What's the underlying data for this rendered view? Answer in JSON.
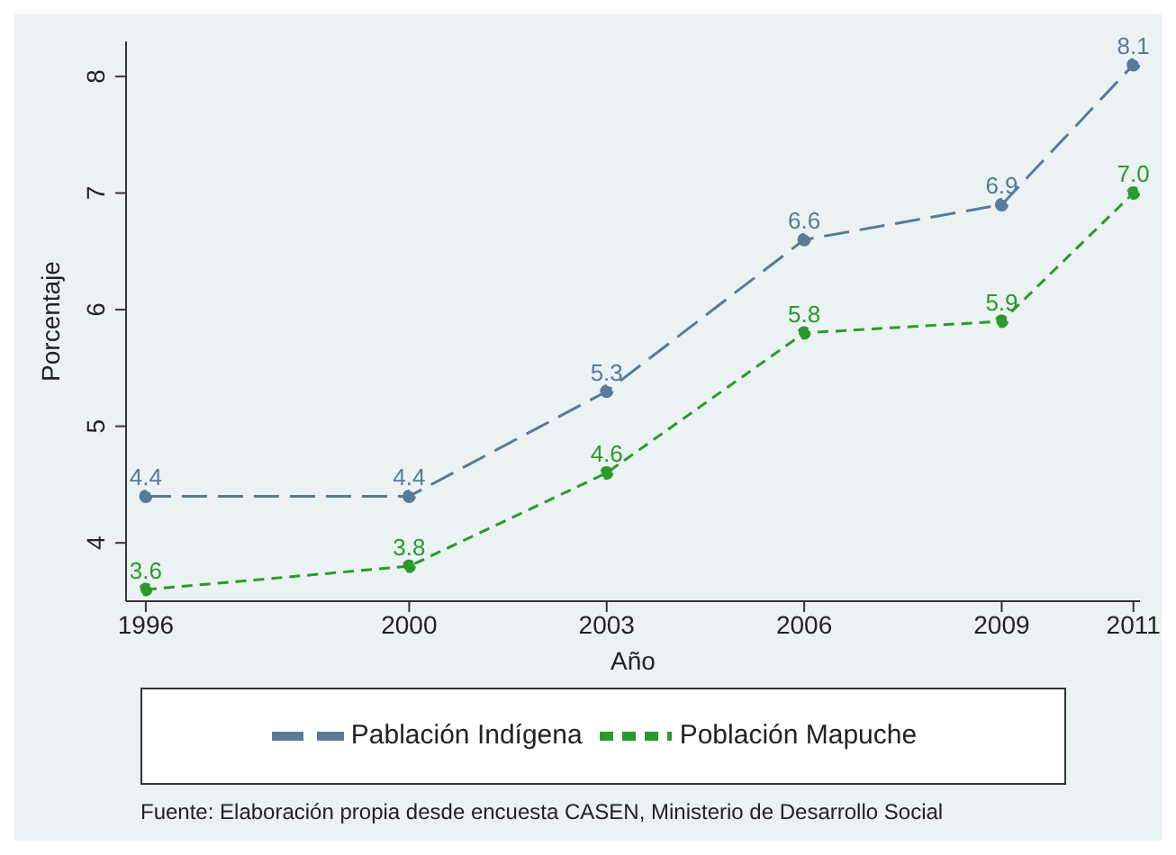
{
  "chart_data": {
    "type": "line",
    "xlabel": "Año",
    "ylabel": "Porcentaje",
    "x": [
      1996,
      2000,
      2003,
      2006,
      2009,
      2011
    ],
    "series": [
      {
        "name": "Pablación Indígena",
        "color": "#5b7a98",
        "values": [
          4.4,
          4.4,
          5.3,
          6.6,
          6.9,
          8.1
        ],
        "value_labels": [
          "4.4",
          "4.4",
          "5.3",
          "6.6",
          "6.9",
          "8.1"
        ],
        "line_style": "dashed"
      },
      {
        "name": "Población Mapuche",
        "color": "#2a9a2a",
        "values": [
          3.6,
          3.8,
          4.6,
          5.8,
          5.9,
          7.0
        ],
        "value_labels": [
          "3.6",
          "3.8",
          "4.6",
          "5.8",
          "5.9",
          "7.0"
        ],
        "line_style": "dotted"
      }
    ],
    "xlim": [
      1995.7,
      2011.1
    ],
    "xticks": [
      1996,
      2000,
      2003,
      2006,
      2009,
      2011
    ],
    "ylim": [
      3.5,
      8.3
    ],
    "yticks": [
      4,
      5,
      6,
      7,
      8
    ],
    "marker": "circle",
    "grid": false,
    "legend": "bottom",
    "annotations": [
      "Fuente: Elaboración propia desde encuesta CASEN, Ministerio de Desarrollo Social"
    ]
  }
}
